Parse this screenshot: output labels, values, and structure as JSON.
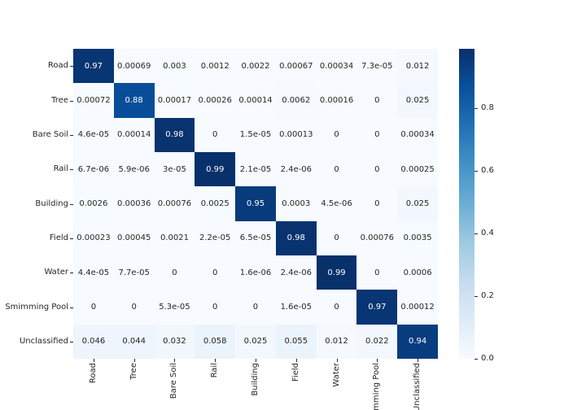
{
  "figure": {
    "background": "#ffffff",
    "kind": "confusion-matrix-heatmap"
  },
  "chart_data": {
    "type": "heatmap",
    "title": "",
    "xlabel": "",
    "ylabel": "",
    "x_categories": [
      "Road",
      "Tree",
      "Bare Soil",
      "Rail",
      "Building",
      "Field",
      "Water",
      "Smimming Pool",
      "Unclassified"
    ],
    "y_categories": [
      "Road",
      "Tree",
      "Bare Soil",
      "Rail",
      "Building",
      "Field",
      "Water",
      "Smimming Pool",
      "Unclassified"
    ],
    "matrix": [
      [
        "0.97",
        "0.00069",
        "0.003",
        "0.0012",
        "0.0022",
        "0.00067",
        "0.00034",
        "7.3e-05",
        "0.012"
      ],
      [
        "0.00072",
        "0.88",
        "0.00017",
        "0.00026",
        "0.00014",
        "0.0062",
        "0.00016",
        "0",
        "0.025"
      ],
      [
        "4.6e-05",
        "0.00014",
        "0.98",
        "0",
        "1.5e-05",
        "0.00013",
        "0",
        "0",
        "0.00034"
      ],
      [
        "6.7e-06",
        "5.9e-06",
        "3e-05",
        "0.99",
        "2.1e-05",
        "2.4e-06",
        "0",
        "0",
        "0.00025"
      ],
      [
        "0.0026",
        "0.00036",
        "0.00076",
        "0.0025",
        "0.95",
        "0.0003",
        "4.5e-06",
        "0",
        "0.025"
      ],
      [
        "0.00023",
        "0.00045",
        "0.0021",
        "2.2e-05",
        "6.5e-05",
        "0.98",
        "0",
        "0.00076",
        "0.0035"
      ],
      [
        "4.4e-05",
        "7.7e-05",
        "0",
        "0",
        "1.6e-06",
        "2.4e-06",
        "0.99",
        "0",
        "0.0006"
      ],
      [
        "0",
        "0",
        "5.3e-05",
        "0",
        "0",
        "1.6e-05",
        "0",
        "0.97",
        "0.00012"
      ],
      [
        "0.046",
        "0.044",
        "0.032",
        "0.058",
        "0.025",
        "0.055",
        "0.012",
        "0.022",
        "0.94"
      ]
    ],
    "vmin": 0.0,
    "vmax": 0.99,
    "colormap": "Blues",
    "grid": "off",
    "legend_position": "right-colorbar",
    "colorbar_ticks": [
      "0.0",
      "0.2",
      "0.4",
      "0.6",
      "0.8"
    ]
  },
  "colors": {
    "blues_stops": [
      "#f7fbff",
      "#deebf7",
      "#c6dbef",
      "#9ecae1",
      "#6baed6",
      "#4292c6",
      "#2171b5",
      "#08519c",
      "#08306b"
    ],
    "annotation_dark": "#262626",
    "annotation_light": "#ffffff",
    "tick_color": "#262626"
  }
}
